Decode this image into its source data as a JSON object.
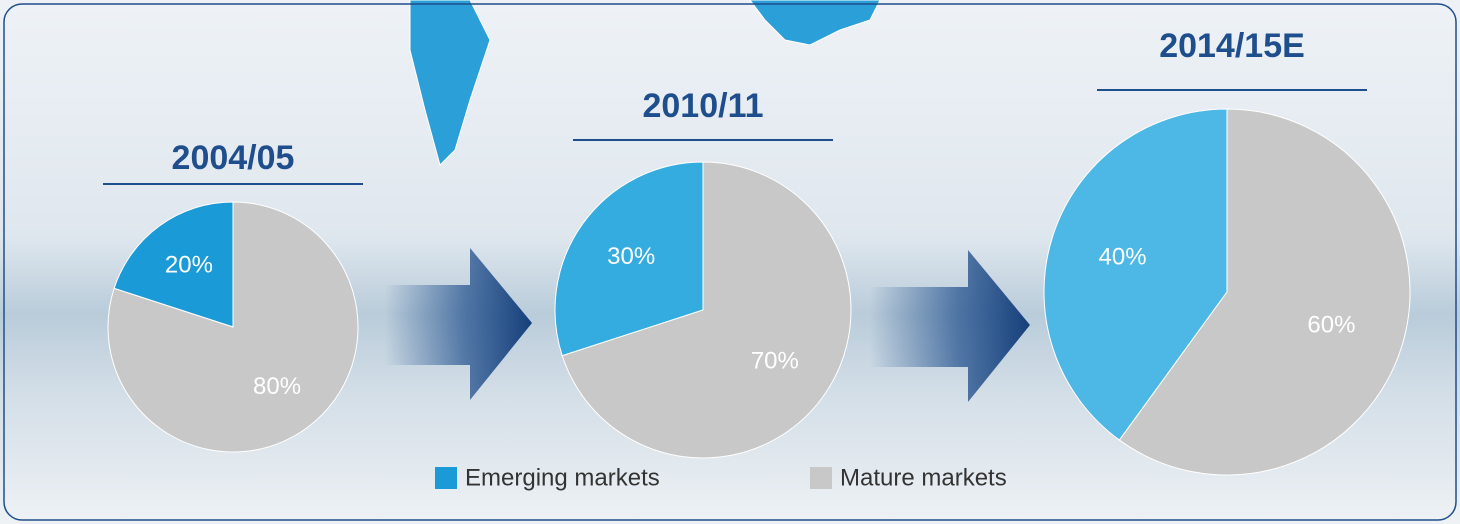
{
  "chart_data": [
    {
      "type": "pie",
      "title": "2004/05",
      "values": [
        20,
        80
      ],
      "value_labels": [
        "20%",
        "80%"
      ],
      "colors": [
        "#1a9ad6",
        "#c8c8c8"
      ]
    },
    {
      "type": "pie",
      "title": "2010/11",
      "values": [
        30,
        70
      ],
      "value_labels": [
        "30%",
        "70%"
      ],
      "colors": [
        "#35ace0",
        "#c8c8c8"
      ]
    },
    {
      "type": "pie",
      "title": "2014/15E",
      "values": [
        40,
        60
      ],
      "value_labels": [
        "40%",
        "60%"
      ],
      "colors": [
        "#4db8e6",
        "#c8c8c8"
      ]
    }
  ],
  "legend": {
    "items": [
      {
        "name": "Emerging markets",
        "color": "#1a9ad6"
      },
      {
        "name": "Mature markets",
        "color": "#c8c8c8"
      }
    ]
  }
}
